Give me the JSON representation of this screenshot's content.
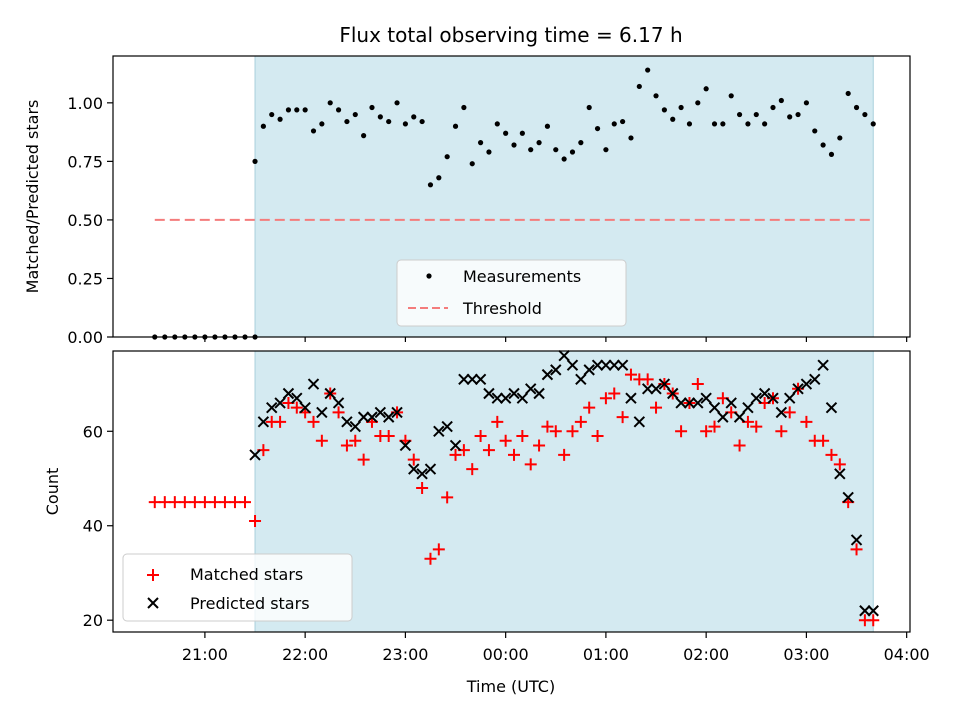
{
  "chart_data": [
    {
      "type": "scatter",
      "title": "Flux total observing time = 6.17 h",
      "xlabel": "",
      "ylabel": "Matched/Predicted stars",
      "ylim": [
        0,
        1.2
      ],
      "yticks": [
        "0.00",
        "0.25",
        "0.50",
        "0.75",
        "1.00"
      ],
      "shaded_interval": [
        "21:30",
        "03:40"
      ],
      "threshold": {
        "name": "Threshold",
        "value": 0.5,
        "x": [
          "20:30",
          "03:40"
        ],
        "color": "#f47c7c",
        "style": "dashed"
      },
      "legend": {
        "placement": "bottom-center",
        "entries": [
          "Measurements",
          "Threshold"
        ]
      },
      "series": [
        {
          "name": "Measurements",
          "color": "#000000",
          "marker": "dot",
          "x": [
            "20:30",
            "20:36",
            "20:42",
            "20:48",
            "20:54",
            "21:00",
            "21:06",
            "21:12",
            "21:18",
            "21:24",
            "21:30",
            "21:30",
            "21:35",
            "21:40",
            "21:45",
            "21:50",
            "21:55",
            "22:00",
            "22:05",
            "22:10",
            "22:15",
            "22:20",
            "22:25",
            "22:30",
            "22:35",
            "22:40",
            "22:45",
            "22:50",
            "22:55",
            "23:00",
            "23:05",
            "23:10",
            "23:15",
            "23:20",
            "23:25",
            "23:30",
            "23:35",
            "23:40",
            "23:45",
            "23:50",
            "23:55",
            "00:00",
            "00:05",
            "00:10",
            "00:15",
            "00:20",
            "00:25",
            "00:30",
            "00:35",
            "00:40",
            "00:45",
            "00:50",
            "00:55",
            "01:00",
            "01:05",
            "01:10",
            "01:15",
            "01:20",
            "01:25",
            "01:30",
            "01:35",
            "01:40",
            "01:45",
            "01:50",
            "01:55",
            "02:00",
            "02:05",
            "02:10",
            "02:15",
            "02:20",
            "02:25",
            "02:30",
            "02:35",
            "02:40",
            "02:45",
            "02:50",
            "02:55",
            "03:00",
            "03:05",
            "03:10",
            "03:15",
            "03:20",
            "03:25",
            "03:30",
            "03:35",
            "03:40"
          ],
          "y": [
            0,
            0,
            0,
            0,
            0,
            0,
            0,
            0,
            0,
            0,
            0,
            0.75,
            0.9,
            0.95,
            0.93,
            0.97,
            0.97,
            0.97,
            0.88,
            0.91,
            1.0,
            0.97,
            0.92,
            0.95,
            0.86,
            0.98,
            0.94,
            0.92,
            1.0,
            0.91,
            0.94,
            0.92,
            0.65,
            0.68,
            0.77,
            0.9,
            0.98,
            0.74,
            0.83,
            0.79,
            0.91,
            0.87,
            0.82,
            0.87,
            0.8,
            0.83,
            0.9,
            0.8,
            0.76,
            0.79,
            0.83,
            0.98,
            0.89,
            0.8,
            0.91,
            0.92,
            0.85,
            1.07,
            1.14,
            1.03,
            0.97,
            0.93,
            0.98,
            0.91,
            1.0,
            1.06,
            0.91,
            0.91,
            1.03,
            0.95,
            0.91,
            0.95,
            0.91,
            0.98,
            1.01,
            0.94,
            0.95,
            1.0,
            0.88,
            0.82,
            0.78,
            0.85,
            1.04,
            0.98,
            0.95,
            0.91
          ]
        }
      ]
    },
    {
      "type": "scatter",
      "title": "",
      "xlabel": "Time (UTC)",
      "ylabel": "Count",
      "ylim": [
        17.5,
        77
      ],
      "yticks": [
        "20",
        "40",
        "60"
      ],
      "xticks": [
        "21:00",
        "22:00",
        "23:00",
        "00:00",
        "01:00",
        "02:00",
        "03:00",
        "04:00"
      ],
      "xlim": [
        "20:05",
        "04:02"
      ],
      "shaded_interval": [
        "21:30",
        "03:40"
      ],
      "legend": {
        "placement": "bottom-left",
        "entries": [
          "Matched stars",
          "Predicted stars"
        ]
      },
      "series": [
        {
          "name": "Matched stars",
          "color": "#ff0000",
          "marker": "plus",
          "x": [
            "20:30",
            "20:36",
            "20:42",
            "20:48",
            "20:54",
            "21:00",
            "21:06",
            "21:12",
            "21:18",
            "21:24",
            "21:30",
            "21:35",
            "21:40",
            "21:45",
            "21:50",
            "21:55",
            "22:00",
            "22:05",
            "22:10",
            "22:15",
            "22:20",
            "22:25",
            "22:30",
            "22:35",
            "22:40",
            "22:45",
            "22:50",
            "22:55",
            "23:00",
            "23:05",
            "23:10",
            "23:15",
            "23:20",
            "23:25",
            "23:30",
            "23:35",
            "23:40",
            "23:45",
            "23:50",
            "23:55",
            "00:00",
            "00:05",
            "00:10",
            "00:15",
            "00:20",
            "00:25",
            "00:30",
            "00:35",
            "00:40",
            "00:45",
            "00:50",
            "00:55",
            "01:00",
            "01:05",
            "01:10",
            "01:15",
            "01:20",
            "01:25",
            "01:30",
            "01:35",
            "01:40",
            "01:45",
            "01:50",
            "01:55",
            "02:00",
            "02:05",
            "02:10",
            "02:15",
            "02:20",
            "02:25",
            "02:30",
            "02:35",
            "02:40",
            "02:45",
            "02:50",
            "02:55",
            "03:00",
            "03:05",
            "03:10",
            "03:15",
            "03:20",
            "03:25",
            "03:30",
            "03:35",
            "03:40"
          ],
          "y": [
            45,
            45,
            45,
            45,
            45,
            45,
            45,
            45,
            45,
            45,
            41,
            56,
            62,
            62,
            66,
            65,
            64,
            62,
            58,
            68,
            64,
            57,
            58,
            54,
            62,
            59,
            59,
            64,
            58,
            54,
            48,
            33,
            35,
            46,
            55,
            56,
            52,
            59,
            56,
            62,
            58,
            55,
            59,
            53,
            57,
            61,
            60,
            55,
            60,
            62,
            65,
            59,
            67,
            68,
            63,
            72,
            71,
            71,
            65,
            70,
            68,
            60,
            66,
            70,
            60,
            61,
            67,
            64,
            57,
            62,
            61,
            66,
            67,
            60,
            64,
            69,
            62,
            58,
            58,
            55,
            53,
            45,
            35,
            20,
            20
          ],
          "y_note": ""
        },
        {
          "name": "Predicted stars",
          "color": "#000000",
          "marker": "x",
          "x": [
            "21:30",
            "21:35",
            "21:40",
            "21:45",
            "21:50",
            "21:55",
            "22:00",
            "22:05",
            "22:10",
            "22:15",
            "22:20",
            "22:25",
            "22:30",
            "22:35",
            "22:40",
            "22:45",
            "22:50",
            "22:55",
            "23:00",
            "23:05",
            "23:10",
            "23:15",
            "23:20",
            "23:25",
            "23:30",
            "23:35",
            "23:40",
            "23:45",
            "23:50",
            "23:55",
            "00:00",
            "00:05",
            "00:10",
            "00:15",
            "00:20",
            "00:25",
            "00:30",
            "00:35",
            "00:40",
            "00:45",
            "00:50",
            "00:55",
            "01:00",
            "01:05",
            "01:10",
            "01:15",
            "01:20",
            "01:25",
            "01:30",
            "01:35",
            "01:40",
            "01:45",
            "01:50",
            "01:55",
            "02:00",
            "02:05",
            "02:10",
            "02:15",
            "02:20",
            "02:25",
            "02:30",
            "02:35",
            "02:40",
            "02:45",
            "02:50",
            "02:55",
            "03:00",
            "03:05",
            "03:10",
            "03:15",
            "03:20",
            "03:25",
            "03:30",
            "03:35",
            "03:40"
          ],
          "y": [
            55,
            62,
            65,
            66,
            68,
            67,
            65,
            70,
            64,
            68,
            66,
            62,
            61,
            63,
            63,
            64,
            63,
            64,
            57,
            52,
            51,
            52,
            60,
            61,
            57,
            71,
            71,
            71,
            68,
            67,
            67,
            68,
            67,
            69,
            68,
            72,
            73,
            76,
            74,
            71,
            73,
            74,
            74,
            74,
            74,
            67,
            62,
            69,
            69,
            70,
            68,
            66,
            66,
            66,
            67,
            65,
            63,
            66,
            63,
            65,
            67,
            68,
            67,
            64,
            67,
            69,
            70,
            71,
            74,
            65,
            51,
            46,
            37,
            22,
            22
          ]
        }
      ]
    }
  ]
}
